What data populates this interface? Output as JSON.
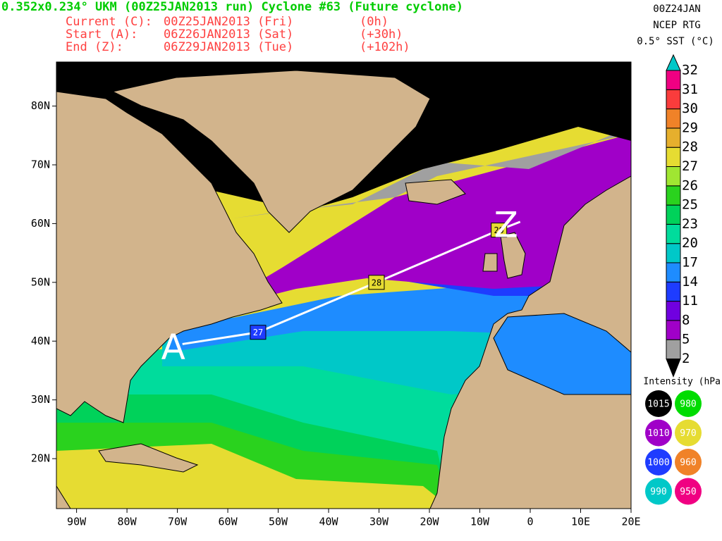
{
  "header": {
    "title": "0.352x0.234° UKM (00Z25JAN2013 run) Cyclone #63 (Future cyclone)",
    "rows": [
      [
        "Current (C):",
        "00Z25JAN2013 (Fri)",
        "(0h)"
      ],
      [
        "Start (A):",
        "06Z26JAN2013 (Sat)",
        "(+30h)"
      ],
      [
        "End (Z):",
        "06Z29JAN2013 (Tue)",
        "(+102h)"
      ]
    ],
    "info": [
      "00Z24JAN",
      "NCEP RTG",
      "0.5° SST (°C)"
    ]
  },
  "map": {
    "xlim": [
      -94,
      20
    ],
    "ylim": [
      11.5,
      87.5
    ],
    "xticks": [
      {
        "value": -90,
        "label": "90W"
      },
      {
        "value": -80,
        "label": "80W"
      },
      {
        "value": -70,
        "label": "70W"
      },
      {
        "value": -60,
        "label": "60W"
      },
      {
        "value": -50,
        "label": "50W"
      },
      {
        "value": -40,
        "label": "40W"
      },
      {
        "value": -30,
        "label": "30W"
      },
      {
        "value": -20,
        "label": "20W"
      },
      {
        "value": -10,
        "label": "10W"
      },
      {
        "value": 0,
        "label": "0"
      },
      {
        "value": 10,
        "label": "10E"
      },
      {
        "value": 20,
        "label": "20E"
      }
    ],
    "yticks": [
      {
        "value": 20,
        "label": "20N"
      },
      {
        "value": 30,
        "label": "30N"
      },
      {
        "value": 40,
        "label": "40N"
      },
      {
        "value": 50,
        "label": "50N"
      },
      {
        "value": 60,
        "label": "60N"
      },
      {
        "value": 70,
        "label": "70N"
      },
      {
        "value": 80,
        "label": "80N"
      }
    ],
    "track": [
      {
        "label": "A",
        "lon": -69,
        "lat": 39.5
      },
      {
        "label": "27",
        "lon": -54,
        "lat": 41.5
      },
      {
        "label": "28",
        "lon": -30.5,
        "lat": 50
      },
      {
        "label": "29",
        "lon": -6.2,
        "lat": 58.9
      },
      {
        "label": "Z",
        "lon": -2,
        "lat": 60.3
      }
    ],
    "colorbar": {
      "levels": [
        {
          "value": 2,
          "color": "#a0a0a0"
        },
        {
          "value": 5,
          "color": "#a000c8"
        },
        {
          "value": 8,
          "color": "#7000e0"
        },
        {
          "value": 11,
          "color": "#1e3cff"
        },
        {
          "value": 14,
          "color": "#1e8cff"
        },
        {
          "value": 17,
          "color": "#00c8c8"
        },
        {
          "value": 20,
          "color": "#00dc9c"
        },
        {
          "value": 23,
          "color": "#00d25a"
        },
        {
          "value": 25,
          "color": "#2ad21e"
        },
        {
          "value": 26,
          "color": "#a0e632"
        },
        {
          "value": 27,
          "color": "#e6dc32"
        },
        {
          "value": 28,
          "color": "#e6af2d"
        },
        {
          "value": 29,
          "color": "#f08228"
        },
        {
          "value": 30,
          "color": "#fa3c3c"
        },
        {
          "value": 31,
          "color": "#f00082"
        },
        {
          "value": 32,
          "color": "#ffffff"
        }
      ]
    },
    "intensity": {
      "title": "Intensity (hPa):",
      "items": [
        {
          "value": 1015,
          "color": "#000000"
        },
        {
          "value": 980,
          "color": "#00dc00"
        },
        {
          "value": 1010,
          "color": "#a000c8"
        },
        {
          "value": 970,
          "color": "#e6dc32"
        },
        {
          "value": 1000,
          "color": "#1e3cff"
        },
        {
          "value": 960,
          "color": "#f08228"
        },
        {
          "value": 990,
          "color": "#00c8c8"
        },
        {
          "value": 950,
          "color": "#f00082"
        }
      ]
    }
  }
}
